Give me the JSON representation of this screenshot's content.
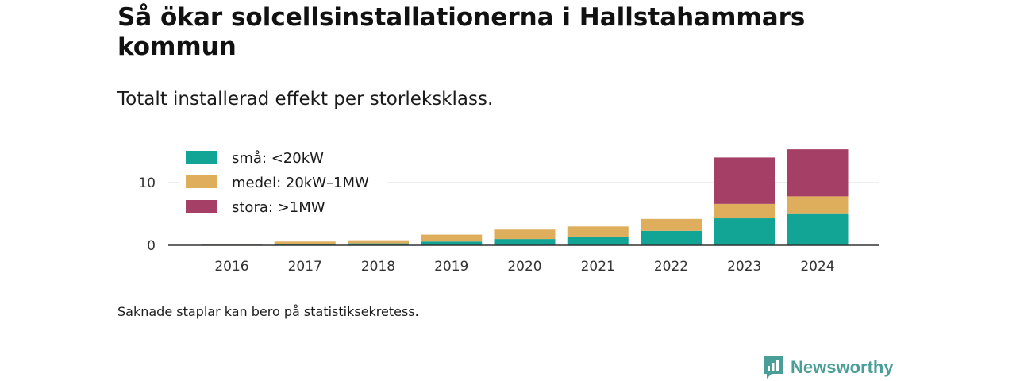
{
  "title": "Så ökar solcellsinstallationerna i Hallstahammars kommun",
  "subtitle": "Totalt installerad effekt per storleksklass.",
  "footnote": "Saknade staplar kan bero på statistiksekretess.",
  "brand": {
    "name": "Newsworthy",
    "color": "#4a9e98"
  },
  "chart_data": {
    "type": "bar",
    "stacked": true,
    "categories": [
      "2016",
      "2017",
      "2018",
      "2019",
      "2020",
      "2021",
      "2022",
      "2023",
      "2024"
    ],
    "series": [
      {
        "name": "små: <20kW",
        "color": "#12a595",
        "values": [
          0.1,
          0.2,
          0.3,
          0.6,
          1.0,
          1.4,
          2.3,
          4.3,
          5.1
        ]
      },
      {
        "name": "medel: 20kW–1MW",
        "color": "#deae5c",
        "values": [
          0.15,
          0.4,
          0.5,
          1.1,
          1.5,
          1.6,
          1.9,
          2.3,
          2.7
        ]
      },
      {
        "name": "stora: >1MW",
        "color": "#a53f65",
        "values": [
          0,
          0,
          0,
          0,
          0,
          0,
          0,
          7.4,
          7.5
        ]
      }
    ],
    "y_ticks": [
      "0",
      "10"
    ],
    "ylim": [
      0,
      16
    ],
    "grid": true,
    "legend_position": "top-left",
    "xlabel": "",
    "ylabel": ""
  }
}
